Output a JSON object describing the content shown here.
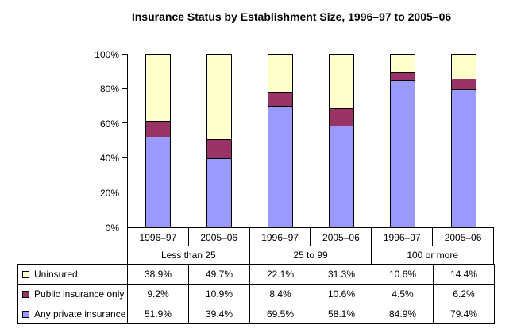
{
  "chart_data": {
    "type": "bar",
    "stacked": true,
    "title": "Insurance Status by Establishment Size, 1996–97 to 2005–06",
    "categories": [
      "1996–97",
      "2005–06",
      "1996–97",
      "2005–06",
      "1996–97",
      "2005–06"
    ],
    "group_labels": [
      "Less than 25",
      "25 to 99",
      "100 or more"
    ],
    "series": [
      {
        "name": "Uninsured",
        "color": "#FFFFCC",
        "values": [
          38.9,
          49.7,
          22.1,
          31.3,
          10.6,
          14.4
        ]
      },
      {
        "name": "Public insurance only",
        "color": "#993366",
        "values": [
          9.2,
          10.9,
          8.4,
          10.6,
          4.5,
          6.2
        ]
      },
      {
        "name": "Any private insurance",
        "color": "#9999FF",
        "values": [
          51.9,
          39.4,
          69.5,
          58.1,
          84.9,
          79.4
        ]
      }
    ],
    "y_ticks": [
      "0%",
      "20%",
      "40%",
      "60%",
      "80%",
      "100%"
    ],
    "ylim": [
      0,
      100
    ],
    "grid": false,
    "legend_position": "table-left"
  },
  "table": {
    "rows": [
      {
        "label": "Uninsured",
        "cells": [
          "38.9%",
          "49.7%",
          "22.1%",
          "31.3%",
          "10.6%",
          "14.4%"
        ]
      },
      {
        "label": "Public insurance only",
        "cells": [
          "9.2%",
          "10.9%",
          "8.4%",
          "10.6%",
          "4.5%",
          "6.2%"
        ]
      },
      {
        "label": "Any private insurance",
        "cells": [
          "51.9%",
          "39.4%",
          "69.5%",
          "58.1%",
          "84.9%",
          "79.4%"
        ]
      }
    ]
  }
}
